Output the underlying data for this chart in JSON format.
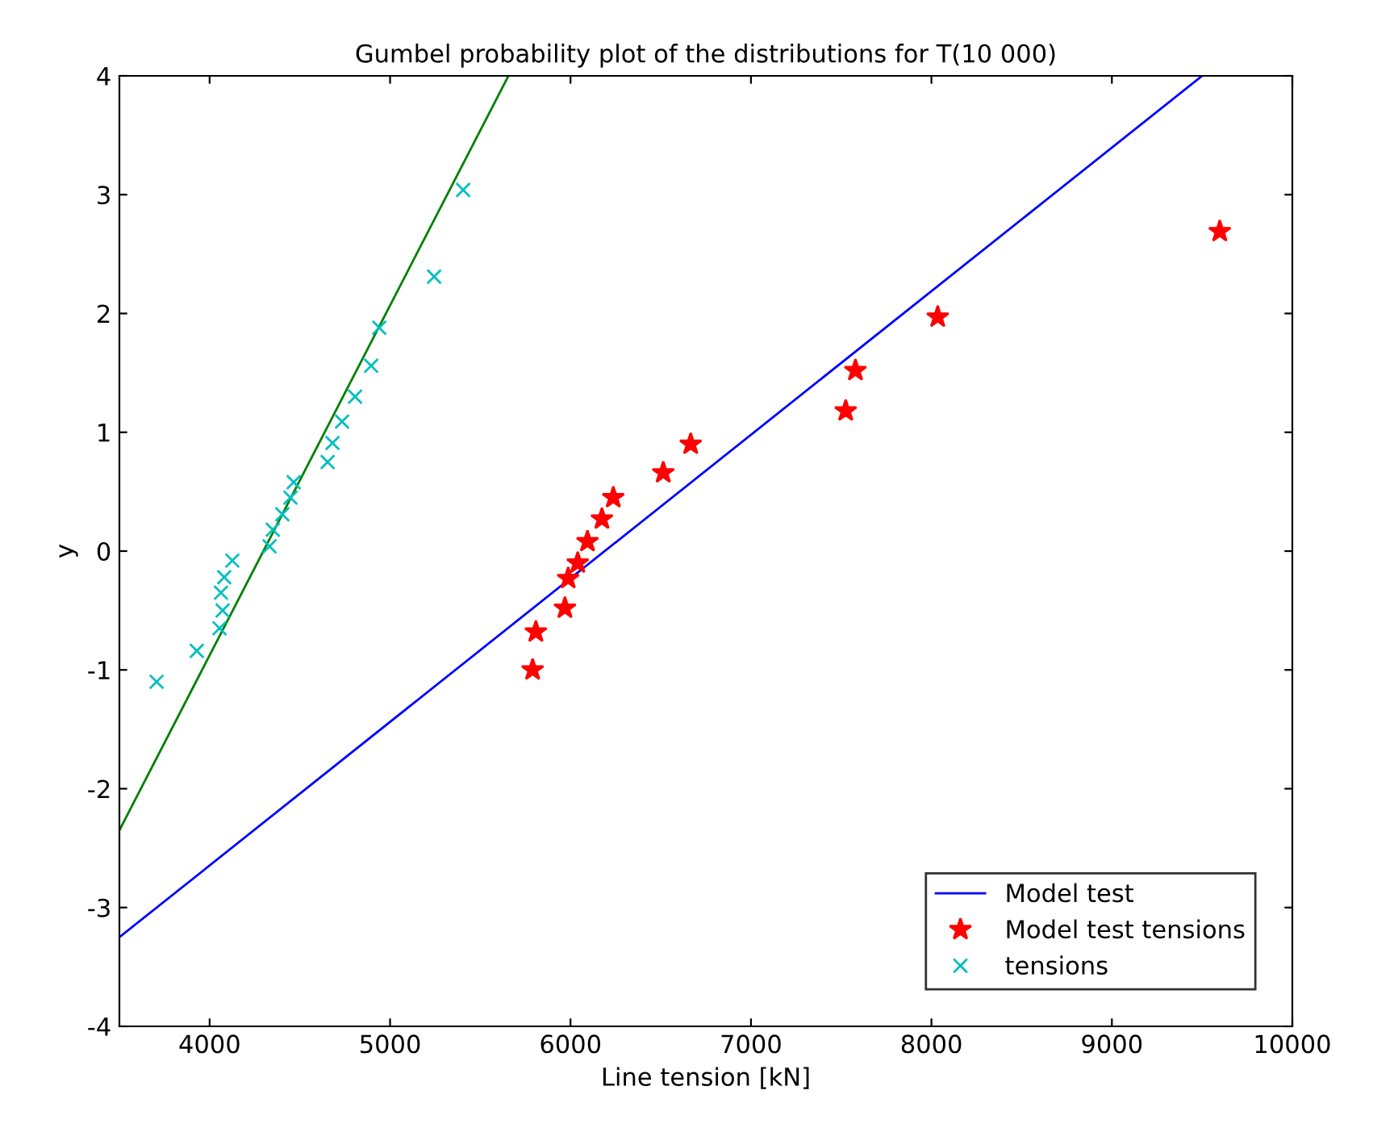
{
  "chart_data": {
    "type": "scatter",
    "title": "Gumbel probability plot of the distributions for T(10 000)",
    "xlabel": "Line tension [kN]",
    "ylabel": "y",
    "xlim": [
      3500,
      10000
    ],
    "xticks": [
      4000,
      5000,
      6000,
      7000,
      8000,
      9000,
      10000
    ],
    "ylim": [
      -4,
      4
    ],
    "yticks": [
      -4,
      -3,
      -2,
      -1,
      0,
      1,
      2,
      3,
      4
    ],
    "grid": false,
    "legend": "bottom right",
    "series": [
      {
        "name": "Model test",
        "type": "line",
        "color": "#0000ff",
        "marker": "none",
        "line_style": "solid",
        "x": [
          3500,
          9500
        ],
        "values": [
          -3.25,
          4.0
        ]
      },
      {
        "type": "line",
        "color": "#008000",
        "marker": "none",
        "line_style": "solid",
        "x": [
          3500,
          5656
        ],
        "values": [
          -2.35,
          4.0
        ]
      },
      {
        "name": "Model test tensions",
        "color": "#ff0000",
        "marker": "star",
        "x": [
          5790,
          5808,
          5969,
          5987,
          6040,
          6094,
          6174,
          6237,
          6514,
          6666,
          7525,
          7579,
          8035,
          9598
        ],
        "values": [
          -1.0,
          -0.68,
          -0.48,
          -0.23,
          -0.1,
          0.08,
          0.27,
          0.45,
          0.66,
          0.9,
          1.18,
          1.52,
          1.97,
          2.69
        ]
      },
      {
        "name": "tensions",
        "color": "#00bfbf",
        "marker": "cross",
        "x": [
          3706,
          3929,
          4055,
          4072,
          4063,
          4081,
          4126,
          4332,
          4350,
          4403,
          4448,
          4466,
          4654,
          4681,
          4734,
          4806,
          4895,
          4940,
          5244,
          5405
        ],
        "values": [
          -1.1,
          -0.84,
          -0.65,
          -0.5,
          -0.35,
          -0.22,
          -0.08,
          0.04,
          0.18,
          0.31,
          0.45,
          0.58,
          0.75,
          0.91,
          1.09,
          1.3,
          1.56,
          1.88,
          2.31,
          3.04
        ]
      }
    ]
  }
}
